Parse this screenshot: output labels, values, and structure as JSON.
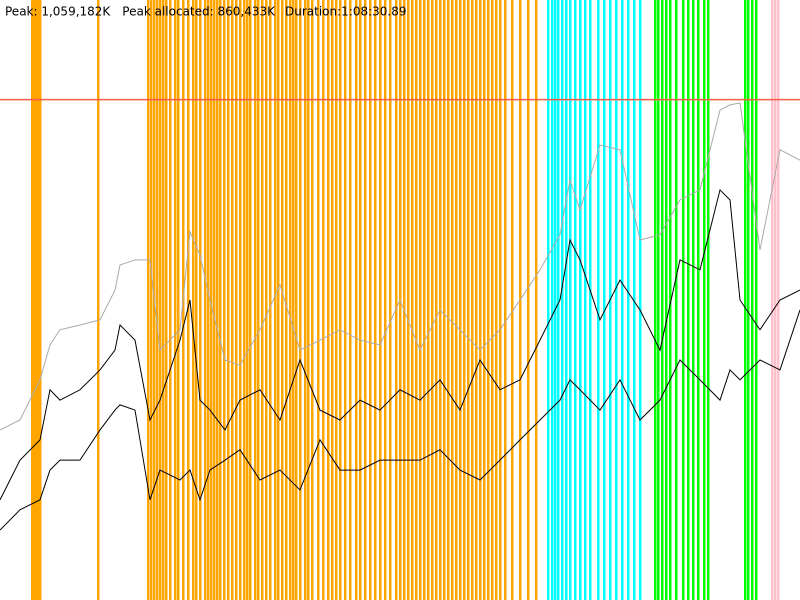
{
  "chart_data": {
    "type": "line",
    "peak": {
      "value": 1059182,
      "label": "Peak: 1,059,182K",
      "color": "#ff5a4a"
    },
    "peak_allocated": "Peak allocated: 860,433K",
    "duration": "Duration:1:08:30.89",
    "xlim": [
      0,
      800
    ],
    "ylim": [
      0,
      1270000
    ],
    "x": [
      0,
      20,
      40,
      50,
      60,
      80,
      100,
      115,
      120,
      135,
      150,
      160,
      180,
      190,
      200,
      210,
      225,
      240,
      260,
      280,
      300,
      320,
      340,
      360,
      380,
      400,
      420,
      440,
      460,
      480,
      500,
      520,
      540,
      560,
      570,
      580,
      600,
      620,
      640,
      660,
      680,
      700,
      720,
      730,
      740,
      760,
      780,
      800
    ],
    "series": [
      {
        "color": "#aaaaaa",
        "values": [
          360000,
          381000,
          466000,
          540000,
          572000,
          582000,
          593000,
          656000,
          709000,
          720000,
          720000,
          529000,
          572000,
          779000,
          730000,
          635000,
          508000,
          497000,
          572000,
          667000,
          529000,
          550000,
          572000,
          550000,
          540000,
          635000,
          529000,
          614000,
          572000,
          529000,
          572000,
          635000,
          699000,
          773000,
          889000,
          826000,
          963000,
          953000,
          762000,
          773000,
          847000,
          868000,
          1037000,
          1048000,
          1052000,
          741000,
          953000,
          931000
        ]
      },
      {
        "color": "#000000",
        "values": [
          212000,
          296000,
          339000,
          445000,
          423000,
          445000,
          487000,
          529000,
          582000,
          550000,
          381000,
          423000,
          550000,
          635000,
          423000,
          402000,
          360000,
          423000,
          445000,
          381000,
          508000,
          402000,
          381000,
          423000,
          402000,
          445000,
          423000,
          466000,
          402000,
          508000,
          445000,
          466000,
          550000,
          635000,
          762000,
          720000,
          593000,
          677000,
          614000,
          529000,
          720000,
          699000,
          868000,
          847000,
          635000,
          572000,
          635000,
          656000
        ]
      },
      {
        "color": "#000000",
        "values": [
          148000,
          191000,
          212000,
          275000,
          296000,
          296000,
          360000,
          402000,
          413000,
          402000,
          212000,
          275000,
          254000,
          275000,
          212000,
          275000,
          296000,
          318000,
          254000,
          275000,
          233000,
          339000,
          275000,
          275000,
          296000,
          296000,
          296000,
          318000,
          275000,
          254000,
          296000,
          339000,
          381000,
          423000,
          466000,
          445000,
          402000,
          466000,
          381000,
          423000,
          508000,
          466000,
          423000,
          487000,
          466000,
          508000,
          487000,
          614000
        ]
      }
    ],
    "markers": [
      {
        "color": "#ffa500",
        "x": [
          32,
          34,
          36,
          38,
          40,
          98,
          148,
          151,
          154,
          157,
          160,
          163,
          166,
          170,
          175,
          178,
          183,
          188,
          193,
          196,
          200,
          205,
          208,
          211,
          214,
          217,
          220,
          224,
          228,
          232,
          236,
          240,
          244,
          247,
          250,
          255,
          258,
          262,
          266,
          270,
          275,
          278,
          282,
          286,
          290,
          293,
          296,
          300,
          305,
          308,
          312,
          318,
          323,
          328,
          332,
          336,
          340,
          345,
          350,
          356,
          360,
          365,
          370,
          375,
          380,
          385,
          390,
          396,
          400,
          404,
          408,
          412,
          416,
          420,
          424,
          428,
          432,
          436,
          440,
          444,
          448,
          452,
          456,
          460,
          464,
          468,
          472,
          476,
          480,
          484,
          488,
          492,
          496,
          500,
          505,
          512,
          520,
          528,
          536
        ]
      },
      {
        "color": "#00ffff",
        "x": [
          548,
          552,
          555,
          558,
          562,
          566,
          570,
          575,
          580,
          585,
          590,
          598,
          604,
          610,
          616,
          622,
          628,
          634,
          640
        ]
      },
      {
        "color": "#00ff00",
        "x": [
          655,
          658,
          662,
          666,
          670,
          676,
          683,
          688,
          693,
          698,
          704,
          708,
          745,
          748,
          752,
          756
        ]
      },
      {
        "color": "#ffc0cb",
        "x": [
          772,
          775,
          778
        ]
      }
    ]
  }
}
